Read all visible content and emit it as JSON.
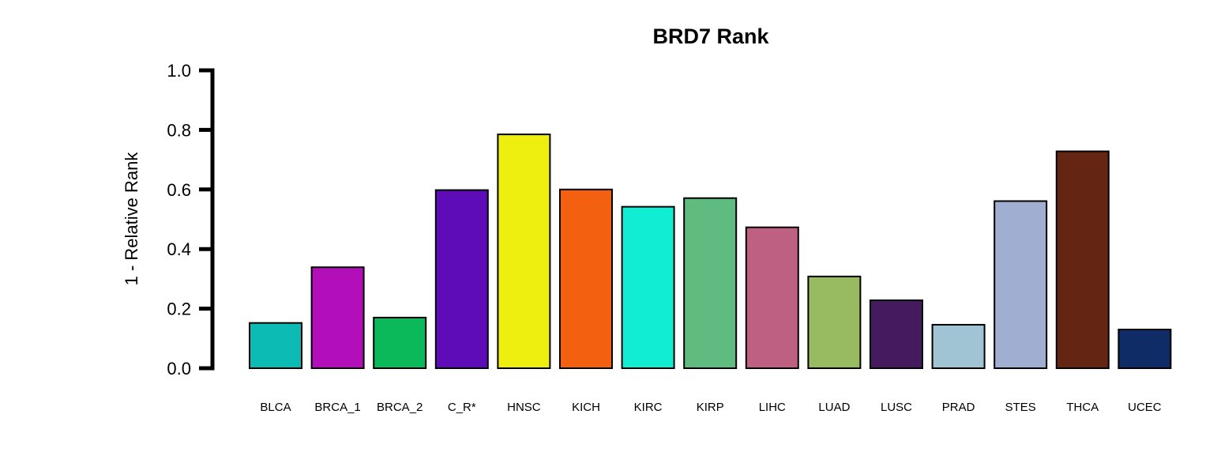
{
  "chart_data": {
    "type": "bar",
    "title": "BRD7 Rank",
    "xlabel": "",
    "ylabel": "1 - Relative Rank",
    "ylim": [
      0,
      1
    ],
    "yticks": [
      "0.0",
      "0.2",
      "0.4",
      "0.6",
      "0.8",
      "1.0"
    ],
    "ytick_values": [
      0,
      0.2,
      0.4,
      0.6,
      0.8,
      1.0
    ],
    "grid": false,
    "legend": "none",
    "categories": [
      "BLCA",
      "BRCA_1",
      "BRCA_2",
      "C_R*",
      "HNSC",
      "KICH",
      "KIRC",
      "KIRP",
      "LIHC",
      "LUAD",
      "LUSC",
      "PRAD",
      "STES",
      "THCA",
      "UCEC"
    ],
    "values": [
      0.152,
      0.339,
      0.17,
      0.598,
      0.785,
      0.6,
      0.542,
      0.571,
      0.473,
      0.308,
      0.228,
      0.146,
      0.561,
      0.728,
      0.13
    ],
    "colors": [
      "#0DBBB5",
      "#B20EB9",
      "#0BB85A",
      "#5E0CB8",
      "#EEEE0F",
      "#F26010",
      "#10EDD2",
      "#60BB80",
      "#BE6081",
      "#98BB62",
      "#461A5E",
      "#A0C4D3",
      "#A0AED2",
      "#652513",
      "#0F2C66"
    ]
  }
}
